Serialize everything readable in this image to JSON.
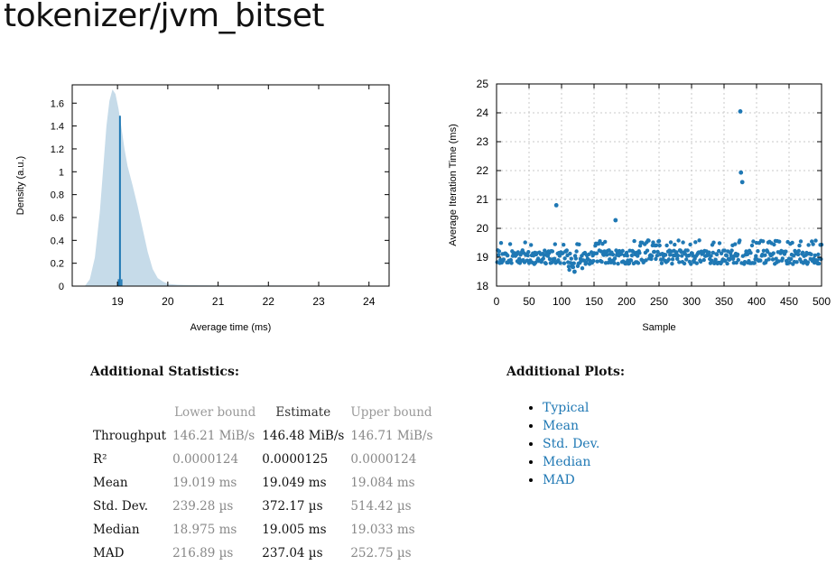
{
  "title": "tokenizer/jvm_bitset",
  "chart_data": [
    {
      "type": "area",
      "xlabel": "Average time (ms)",
      "ylabel": "Density (a.u.)",
      "xlim": [
        18.1,
        24.4
      ],
      "ylim": [
        0,
        1.76
      ],
      "xticks": [
        19,
        20,
        21,
        22,
        23,
        24
      ],
      "yticks": [
        0,
        0.2,
        0.4,
        0.6,
        0.8,
        1,
        1.2,
        1.4,
        1.6
      ],
      "ytick_labels": [
        "0",
        "0.2",
        "0.4",
        "0.6",
        "0.8",
        "1",
        "1.2",
        "1.4",
        "1.6"
      ],
      "fill_color": "#c6dbe9",
      "line_color": "#1f78b4",
      "density": {
        "x": [
          18.35,
          18.45,
          18.55,
          18.65,
          18.72,
          18.78,
          18.84,
          18.9,
          18.96,
          19.02,
          19.08,
          19.14,
          19.2,
          19.3,
          19.4,
          19.5,
          19.6,
          19.7,
          19.8,
          19.9,
          20.0,
          20.2,
          20.5,
          21.0,
          21.5,
          22.0,
          22.5,
          23.0,
          23.5,
          24.0
        ],
        "y": [
          0.0,
          0.06,
          0.25,
          0.65,
          1.05,
          1.4,
          1.62,
          1.72,
          1.68,
          1.55,
          1.38,
          1.2,
          1.05,
          0.88,
          0.7,
          0.5,
          0.3,
          0.15,
          0.07,
          0.04,
          0.02,
          0.012,
          0.008,
          0.006,
          0.005,
          0.006,
          0.005,
          0.004,
          0.004,
          0.003
        ]
      },
      "estimate": {
        "x": 19.049,
        "y": 1.49
      },
      "marks": [
        {
          "x": 19.019,
          "y": 0.06
        },
        {
          "x": 19.084,
          "y": 0.06
        }
      ]
    },
    {
      "type": "scatter",
      "xlabel": "Sample",
      "ylabel": "Average Iteration Time (ms)",
      "xlim": [
        0,
        500
      ],
      "ylim": [
        18,
        25
      ],
      "xticks": [
        0,
        50,
        100,
        150,
        200,
        250,
        300,
        350,
        400,
        450,
        500
      ],
      "yticks": [
        18,
        19,
        20,
        21,
        22,
        23,
        24,
        25
      ],
      "grid": true,
      "point_color": "#1f78b4",
      "baseline": 19.0,
      "outliers": [
        {
          "x": 92,
          "y": 20.8
        },
        {
          "x": 183,
          "y": 20.28
        },
        {
          "x": 375,
          "y": 24.05
        },
        {
          "x": 376,
          "y": 21.93
        },
        {
          "x": 378,
          "y": 21.6
        },
        {
          "x": 120,
          "y": 18.5
        }
      ]
    }
  ],
  "stats": {
    "heading": "Additional Statistics:",
    "columns": [
      "Lower bound",
      "Estimate",
      "Upper bound"
    ],
    "rows": [
      {
        "label": "Throughput",
        "lower": "146.21 MiB/s",
        "estimate": "146.48 MiB/s",
        "upper": "146.71 MiB/s"
      },
      {
        "label": "R²",
        "lower": "0.0000124",
        "estimate": "0.0000125",
        "upper": "0.0000124"
      },
      {
        "label": "Mean",
        "lower": "19.019 ms",
        "estimate": "19.049 ms",
        "upper": "19.084 ms"
      },
      {
        "label": "Std. Dev.",
        "lower": "239.28 µs",
        "estimate": "372.17 µs",
        "upper": "514.42 µs"
      },
      {
        "label": "Median",
        "lower": "18.975 ms",
        "estimate": "19.005 ms",
        "upper": "19.033 ms"
      },
      {
        "label": "MAD",
        "lower": "216.89 µs",
        "estimate": "237.04 µs",
        "upper": "252.75 µs"
      }
    ]
  },
  "plots": {
    "heading": "Additional Plots:",
    "links": [
      "Typical",
      "Mean",
      "Std. Dev.",
      "Median",
      "MAD"
    ]
  }
}
